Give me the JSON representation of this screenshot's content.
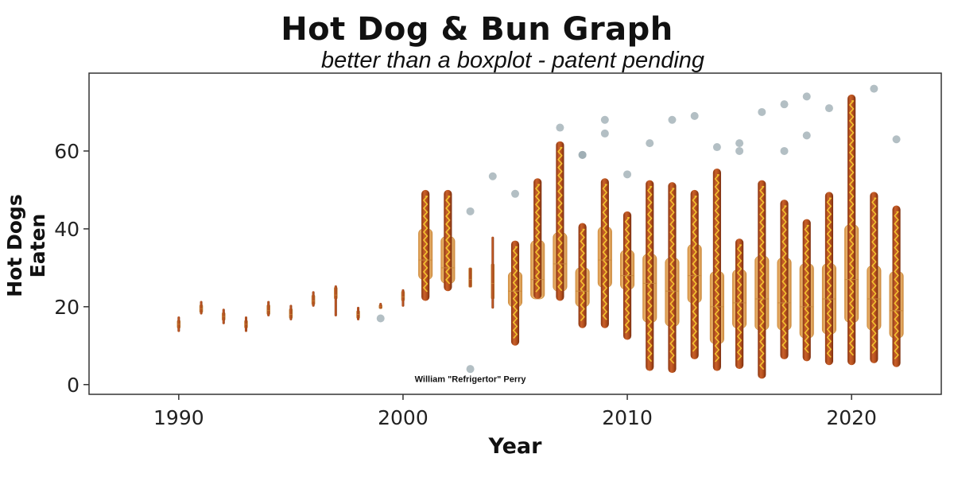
{
  "chart_data": {
    "type": "boxplot",
    "title": "Hot Dog & Bun Graph",
    "subtitle": "better than a boxplot - patent pending",
    "xlabel": "Year",
    "ylabel": "Hot Dogs Eaten",
    "xlim": [
      1986,
      2024
    ],
    "ylim": [
      -2.5,
      80
    ],
    "x_ticks": [
      1990,
      2000,
      2010,
      2020
    ],
    "y_ticks": [
      0,
      20,
      40,
      60
    ],
    "grid": false,
    "colors": {
      "sausage": "#b5501d",
      "sausage_dark": "#8a3512",
      "mustard": "#f2c230",
      "bun": "#e2a455",
      "bun_light": "#f0c27d",
      "outlier": "#9aa9b0",
      "axis": "#333333"
    },
    "boxes": [
      {
        "year": 1990,
        "min": 13.5,
        "q1": 14.5,
        "median": 15.5,
        "q3": 16.5,
        "max": 17.5
      },
      {
        "year": 1991,
        "min": 18,
        "q1": 18.5,
        "median": 19.5,
        "q3": 20.5,
        "max": 21.5
      },
      {
        "year": 1992,
        "min": 15.5,
        "q1": 16.5,
        "median": 17.5,
        "q3": 18.5,
        "max": 19.5
      },
      {
        "year": 1993,
        "min": 13.5,
        "q1": 14.5,
        "median": 15.5,
        "q3": 16.5,
        "max": 17.5
      },
      {
        "year": 1994,
        "min": 17.5,
        "q1": 18,
        "median": 19,
        "q3": 20.5,
        "max": 21.5
      },
      {
        "year": 1995,
        "min": 16.5,
        "q1": 17,
        "median": 18,
        "q3": 19.5,
        "max": 20.5
      },
      {
        "year": 1996,
        "min": 20,
        "q1": 20.5,
        "median": 21.5,
        "q3": 23,
        "max": 24
      },
      {
        "year": 1997,
        "min": 17.5,
        "q1": 22,
        "median": 23,
        "q3": 25,
        "max": 25.5
      },
      {
        "year": 1998,
        "min": 16.5,
        "q1": 17,
        "median": 18,
        "q3": 19,
        "max": 20
      },
      {
        "year": 1999,
        "min": 19.5,
        "q1": 19.5,
        "median": 20,
        "q3": 20.5,
        "max": 21
      },
      {
        "year": 2000,
        "min": 20,
        "q1": 21.5,
        "median": 22.5,
        "q3": 24,
        "max": 24.5
      },
      {
        "year": 2001,
        "min": 21.5,
        "q1": 27,
        "median": 32,
        "q3": 40,
        "max": 50
      },
      {
        "year": 2002,
        "min": 24,
        "q1": 26,
        "median": 30,
        "q3": 38,
        "max": 50
      },
      {
        "year": 2003,
        "min": 25,
        "q1": 25,
        "median": 27,
        "q3": 30,
        "max": 30
      },
      {
        "year": 2004,
        "min": 19.5,
        "q1": 22,
        "median": 26,
        "q3": 31,
        "max": 38
      },
      {
        "year": 2005,
        "min": 10,
        "q1": 20,
        "median": 24,
        "q3": 29,
        "max": 37
      },
      {
        "year": 2006,
        "min": 22,
        "q1": 22,
        "median": 27,
        "q3": 37,
        "max": 53
      },
      {
        "year": 2007,
        "min": 21.5,
        "q1": 24,
        "median": 31,
        "q3": 39,
        "max": 62.5
      },
      {
        "year": 2008,
        "min": 14.5,
        "q1": 20,
        "median": 24,
        "q3": 30,
        "max": 41.5
      },
      {
        "year": 2009,
        "min": 14.5,
        "q1": 25,
        "median": 32,
        "q3": 40.5,
        "max": 53
      },
      {
        "year": 2010,
        "min": 11.5,
        "q1": 24.5,
        "median": 28,
        "q3": 34.5,
        "max": 44.5
      },
      {
        "year": 2011,
        "min": 3.5,
        "q1": 16,
        "median": 26,
        "q3": 33.5,
        "max": 52.5
      },
      {
        "year": 2012,
        "min": 3,
        "q1": 15,
        "median": 24,
        "q3": 32.5,
        "max": 52
      },
      {
        "year": 2013,
        "min": 6.5,
        "q1": 21,
        "median": 28,
        "q3": 36,
        "max": 50
      },
      {
        "year": 2014,
        "min": 3.5,
        "q1": 10.5,
        "median": 20,
        "q3": 29,
        "max": 55.5
      },
      {
        "year": 2015,
        "min": 4,
        "q1": 14.5,
        "median": 21,
        "q3": 29.5,
        "max": 37.5
      },
      {
        "year": 2016,
        "min": 1.5,
        "q1": 14,
        "median": 22,
        "q3": 33,
        "max": 52.5
      },
      {
        "year": 2017,
        "min": 6.5,
        "q1": 14,
        "median": 21,
        "q3": 32.5,
        "max": 47.5
      },
      {
        "year": 2018,
        "min": 6,
        "q1": 12,
        "median": 20,
        "q3": 31,
        "max": 42.5
      },
      {
        "year": 2019,
        "min": 5,
        "q1": 13,
        "median": 22,
        "q3": 31,
        "max": 49.5
      },
      {
        "year": 2020,
        "min": 5,
        "q1": 16,
        "median": 27,
        "q3": 41,
        "max": 74.5
      },
      {
        "year": 2021,
        "min": 5.5,
        "q1": 14,
        "median": 22,
        "q3": 30.5,
        "max": 49.5
      },
      {
        "year": 2022,
        "min": 4.5,
        "q1": 12,
        "median": 19,
        "q3": 29,
        "max": 46
      }
    ],
    "outliers": [
      {
        "year": 1999,
        "value": 17
      },
      {
        "year": 2003,
        "value": 44.5
      },
      {
        "year": 2003,
        "value": 4
      },
      {
        "year": 2004,
        "value": 53.5
      },
      {
        "year": 2005,
        "value": 49
      },
      {
        "year": 2007,
        "value": 66
      },
      {
        "year": 2008,
        "value": 59
      },
      {
        "year": 2008,
        "value": 59
      },
      {
        "year": 2009,
        "value": 68
      },
      {
        "year": 2009,
        "value": 64.5
      },
      {
        "year": 2010,
        "value": 54
      },
      {
        "year": 2011,
        "value": 62
      },
      {
        "year": 2012,
        "value": 68
      },
      {
        "year": 2013,
        "value": 69
      },
      {
        "year": 2014,
        "value": 61
      },
      {
        "year": 2015,
        "value": 62
      },
      {
        "year": 2015,
        "value": 60
      },
      {
        "year": 2016,
        "value": 70
      },
      {
        "year": 2017,
        "value": 72
      },
      {
        "year": 2017,
        "value": 60
      },
      {
        "year": 2018,
        "value": 74
      },
      {
        "year": 2018,
        "value": 64
      },
      {
        "year": 2019,
        "value": 71
      },
      {
        "year": 2021,
        "value": 76
      },
      {
        "year": 2022,
        "value": 63
      }
    ],
    "annotations": [
      {
        "text": "William \"Refrigertor\" Perry",
        "year": 2003,
        "value": 1.5
      }
    ]
  }
}
